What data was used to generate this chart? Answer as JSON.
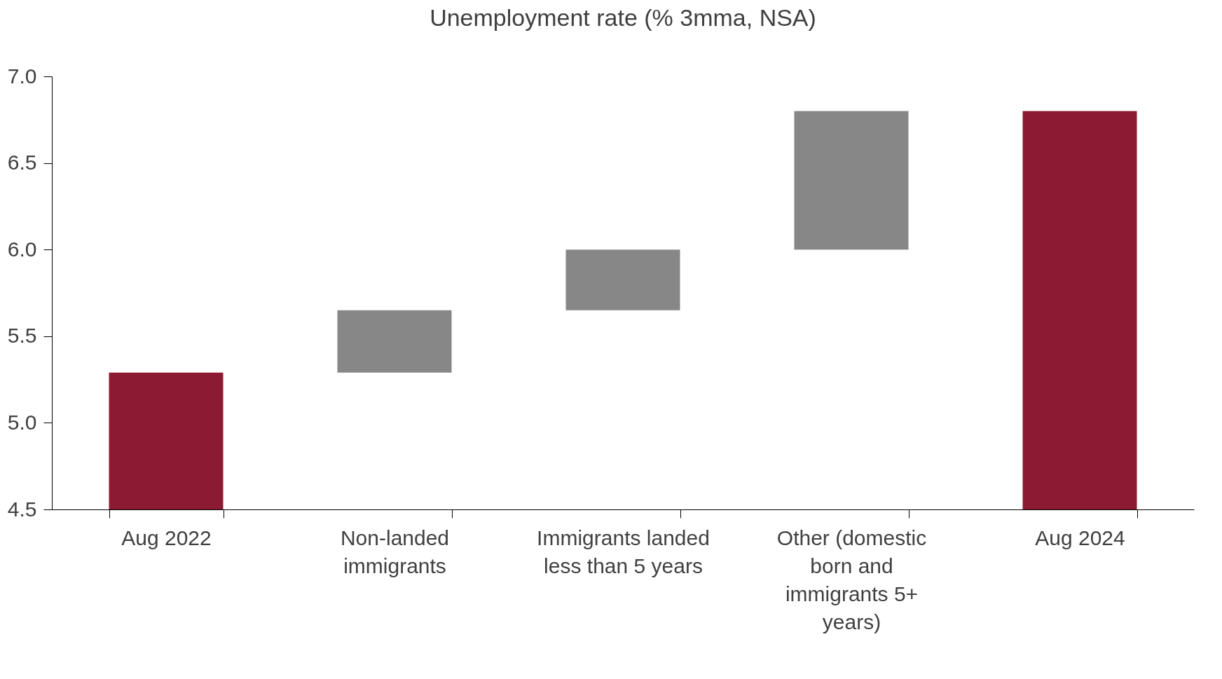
{
  "chart_data": {
    "type": "bar",
    "title": "Unemployment rate (% 3mma, NSA)",
    "categories": [
      "Aug 2022",
      "Non-landed immigrants",
      "Immigrants landed less than 5 years",
      "Other (domestic born and immigrants 5+ years)",
      "Aug 2024"
    ],
    "values": [
      5.29,
      0.36,
      0.35,
      0.8,
      6.8
    ],
    "base": [
      null,
      5.29,
      5.65,
      6.0,
      null
    ],
    "colors": [
      "#8b1a32",
      "#878787",
      "#878787",
      "#878787",
      "#8b1a32"
    ],
    "ylim": [
      4.5,
      7.0
    ],
    "yticks": [
      {
        "value": 4.5,
        "label": "4.5"
      },
      {
        "value": 5.0,
        "label": "5.0"
      },
      {
        "value": 5.5,
        "label": "5.5"
      },
      {
        "value": 6.0,
        "label": "6.0"
      },
      {
        "value": 6.5,
        "label": "6.5"
      },
      {
        "value": 7.0,
        "label": "7.0"
      }
    ],
    "grid": false
  }
}
